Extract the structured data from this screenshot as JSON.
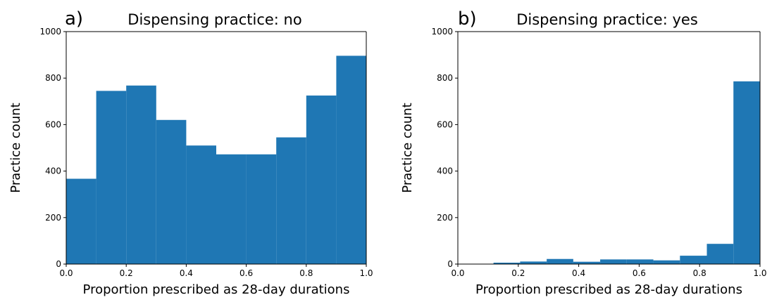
{
  "chart_data": [
    {
      "type": "bar",
      "panel_label": "a)",
      "title": "Dispensing practice: no",
      "xlabel": "Proportion prescribed as 28-day durations",
      "ylabel": "Practice count",
      "xlim": [
        0.0,
        1.0
      ],
      "ylim": [
        0,
        1000
      ],
      "xticks": [
        "0.0",
        "0.2",
        "0.4",
        "0.6",
        "0.8",
        "1.0"
      ],
      "yticks": [
        "0",
        "200",
        "400",
        "600",
        "800",
        "1000"
      ],
      "bin_edges": [
        0.0,
        0.1,
        0.2,
        0.3,
        0.4,
        0.5,
        0.6,
        0.7,
        0.8,
        0.9,
        1.0
      ],
      "values": [
        367,
        745,
        768,
        620,
        510,
        472,
        472,
        545,
        725,
        896
      ],
      "color": "#1f77b4",
      "grid": false
    },
    {
      "type": "bar",
      "panel_label": "b)",
      "title": "Dispensing practice: yes",
      "xlabel": "Proportion prescribed as 28-day durations",
      "ylabel": "Practice count",
      "xlim": [
        0.0,
        1.0
      ],
      "ylim": [
        0,
        1000
      ],
      "xticks": [
        "0.0",
        "0.2",
        "0.4",
        "0.6",
        "0.8",
        "1.0"
      ],
      "yticks": [
        "0",
        "200",
        "400",
        "600",
        "800",
        "1000"
      ],
      "bin_edges": [
        0.118,
        0.206,
        0.294,
        0.382,
        0.471,
        0.559,
        0.647,
        0.735,
        0.824,
        0.912,
        1.0
      ],
      "values": [
        6,
        11,
        22,
        10,
        20,
        20,
        16,
        36,
        87,
        786
      ],
      "color": "#1f77b4",
      "grid": false
    }
  ]
}
